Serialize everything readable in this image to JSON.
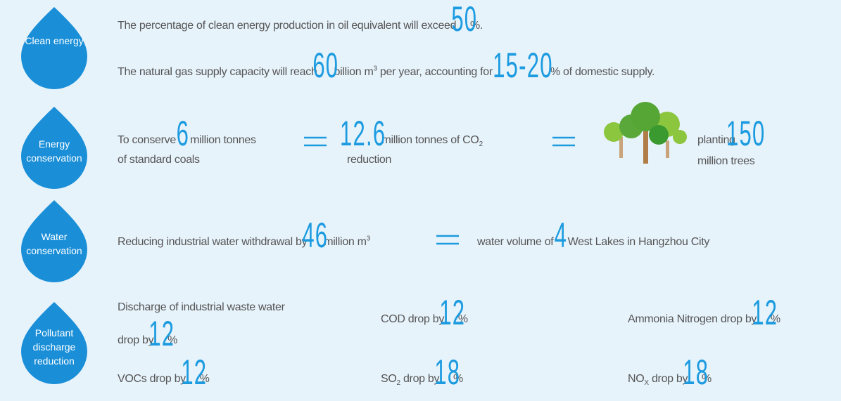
{
  "clean_energy": {
    "label": "Clean energy",
    "line1": {
      "text": "The percentage of clean energy production in oil equivalent will exceed",
      "value": 50,
      "unit": "%."
    },
    "line2": {
      "text": "The natural gas supply capacity will reach",
      "value": 60,
      "unit": "billion m",
      "sup": "3",
      "text2": "per year, accounting for",
      "value2": "15-20",
      "unit2": "% of domestic supply."
    }
  },
  "energy_conservation": {
    "label": "Energy conservation",
    "a": {
      "text": "To conserve",
      "value": 6,
      "unit": "million tonnes",
      "text2": "of standard coals"
    },
    "b": {
      "value": 12.6,
      "unit": "million tonnes of CO",
      "sub": "2",
      "text2": "reduction"
    },
    "c": {
      "text": "planting",
      "value": 150,
      "text2": "million trees"
    }
  },
  "water_conservation": {
    "label": "Water conservation",
    "text": "Reducing industrial water withdrawal by",
    "value": 46,
    "unit": "million m",
    "sup": "3",
    "text2": "water volume of",
    "value2": 4,
    "text3": "West Lakes in Hangzhou City"
  },
  "pollutant_reduction": {
    "label": "Pollutant discharge reduction",
    "items": [
      {
        "text": "Discharge of industrial waste water",
        "text2": "drop by",
        "value": 12,
        "unit": "%"
      },
      {
        "text": "COD drop by",
        "value": 12,
        "unit": "%"
      },
      {
        "text": "Ammonia Nitrogen drop by",
        "value": 12,
        "unit": "%"
      },
      {
        "text": "VOCs drop by",
        "value": 12,
        "unit": "%"
      },
      {
        "text": "SO",
        "sub": "2",
        "text2": "drop by",
        "value": 18,
        "unit": "%"
      },
      {
        "text": "NO",
        "sub": "X",
        "text2": "drop by",
        "value": 18,
        "unit": "%"
      }
    ]
  }
}
